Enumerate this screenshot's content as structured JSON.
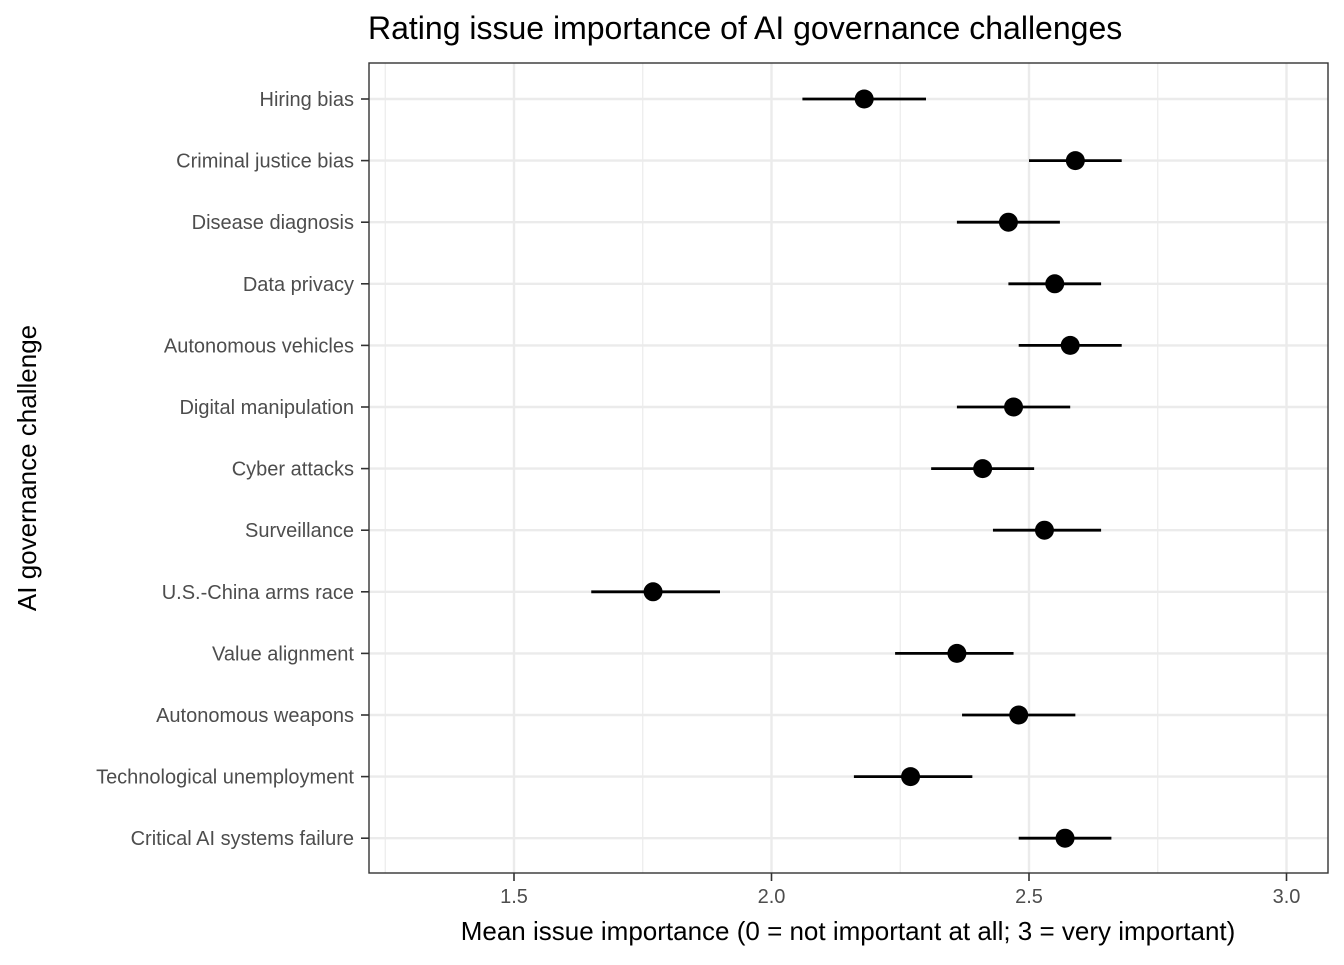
{
  "chart_data": {
    "type": "scatter",
    "title": "Rating issue importance of AI governance challenges",
    "xlabel": "Mean issue importance (0 = not important at all; 3 = very important)",
    "ylabel": "AI governance challenge",
    "xlim": [
      1.25,
      3.08
    ],
    "x_ticks": [
      "1.5",
      "2.0",
      "2.5",
      "3.0"
    ],
    "grid": true,
    "point_color": "#000000",
    "categories": [
      "Hiring bias",
      "Criminal justice bias",
      "Disease diagnosis",
      "Data privacy",
      "Autonomous vehicles",
      "Digital manipulation",
      "Cyber attacks",
      "Surveillance",
      "U.S.-China arms race",
      "Value alignment",
      "Autonomous weapons",
      "Technological unemployment",
      "Critical AI systems failure"
    ],
    "points": [
      {
        "label": "Hiring bias",
        "mean": 2.18,
        "lower": 2.06,
        "upper": 2.3
      },
      {
        "label": "Criminal justice bias",
        "mean": 2.59,
        "lower": 2.5,
        "upper": 2.68
      },
      {
        "label": "Disease diagnosis",
        "mean": 2.46,
        "lower": 2.36,
        "upper": 2.56
      },
      {
        "label": "Data privacy",
        "mean": 2.55,
        "lower": 2.46,
        "upper": 2.64
      },
      {
        "label": "Autonomous vehicles",
        "mean": 2.58,
        "lower": 2.48,
        "upper": 2.68
      },
      {
        "label": "Digital manipulation",
        "mean": 2.47,
        "lower": 2.36,
        "upper": 2.58
      },
      {
        "label": "Cyber attacks",
        "mean": 2.41,
        "lower": 2.31,
        "upper": 2.51
      },
      {
        "label": "Surveillance",
        "mean": 2.53,
        "lower": 2.43,
        "upper": 2.64
      },
      {
        "label": "U.S.-China arms race",
        "mean": 1.77,
        "lower": 1.65,
        "upper": 1.9
      },
      {
        "label": "Value alignment",
        "mean": 2.36,
        "lower": 2.24,
        "upper": 2.47
      },
      {
        "label": "Autonomous weapons",
        "mean": 2.48,
        "lower": 2.37,
        "upper": 2.59
      },
      {
        "label": "Technological unemployment",
        "mean": 2.27,
        "lower": 2.16,
        "upper": 2.39
      },
      {
        "label": "Critical AI systems failure",
        "mean": 2.57,
        "lower": 2.48,
        "upper": 2.66
      }
    ]
  }
}
